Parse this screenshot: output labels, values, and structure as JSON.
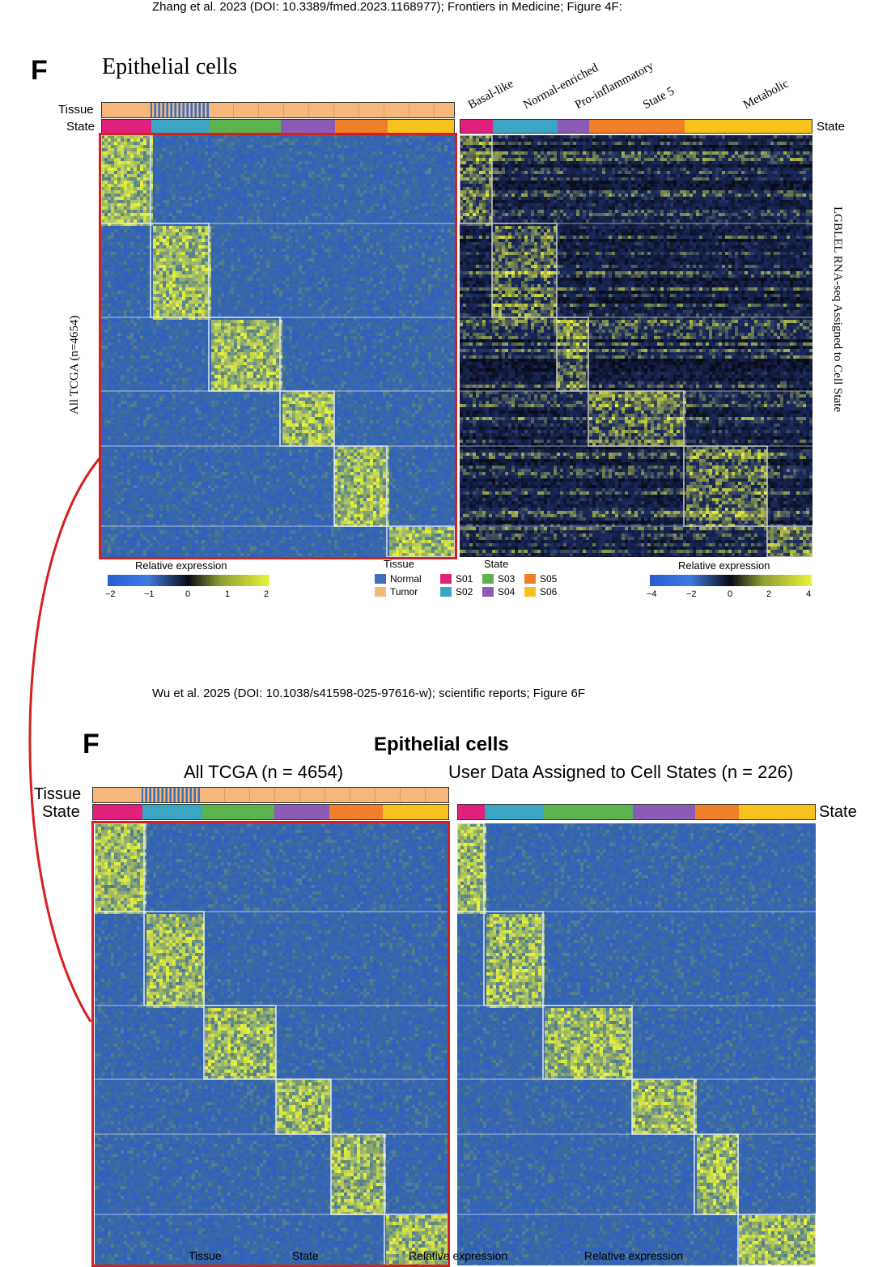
{
  "captions": {
    "top": "Zhang et al. 2023 (DOI: 10.3389/fmed.2023.1168977); Frontiers in Medicine; Figure 4F:",
    "bottom": "Wu et al. 2025 (DOI: 10.1038/s41598-025-97616-w); scientific reports; Figure 6F"
  },
  "top_panel": {
    "letter": "F",
    "title": "Epithelial cells",
    "tissue_label": "Tissue",
    "state_label": "State",
    "right_state_label": "State",
    "left_ylabel": "All TCGA (n=4654)",
    "right_ylabel": "LGBLEL RNA-seq Assigned to Cell State",
    "column_labels": [
      "Basal-like",
      "Normal-enriched",
      "Pro-inflammatory",
      "State 5",
      "Metabolic"
    ],
    "legend_left": {
      "title": "Relative expression",
      "ticks": [
        "−2",
        "−1",
        "0",
        "1",
        "2"
      ]
    },
    "legend_right": {
      "title": "Relative expression",
      "ticks": [
        "−4",
        "−2",
        "0",
        "2",
        "4"
      ]
    },
    "tissue_legend": {
      "title": "Tissue",
      "items": [
        "Normal",
        "Tumor"
      ]
    },
    "state_legend": {
      "title": "State",
      "items": [
        "S01",
        "S02",
        "S03",
        "S04",
        "S05",
        "S06"
      ]
    }
  },
  "bottom_panel": {
    "letter": "F",
    "title": "Epithelial cells",
    "left_subtitle": "All TCGA (n = 4654)",
    "right_subtitle": "User Data Assigned to Cell States (n = 226)",
    "tissue_label": "Tissue",
    "state_label": "State",
    "right_state_label": "State",
    "legend_labels": [
      "Tissue",
      "State",
      "Relative expression",
      "Relative expression"
    ]
  },
  "colors": {
    "S01": "#e0207a",
    "S02": "#3aa6c4",
    "S03": "#5cb34e",
    "S04": "#8c5bb5",
    "S05": "#f07f2a",
    "S06": "#f7c21c",
    "Normal": "#3f6fb5",
    "Tumor": "#f5b77a",
    "highlight": "#d42020",
    "heat_low": "#2a5bd0",
    "heat_mid": "#0a0a14",
    "heat_high": "#e8f23c"
  }
}
